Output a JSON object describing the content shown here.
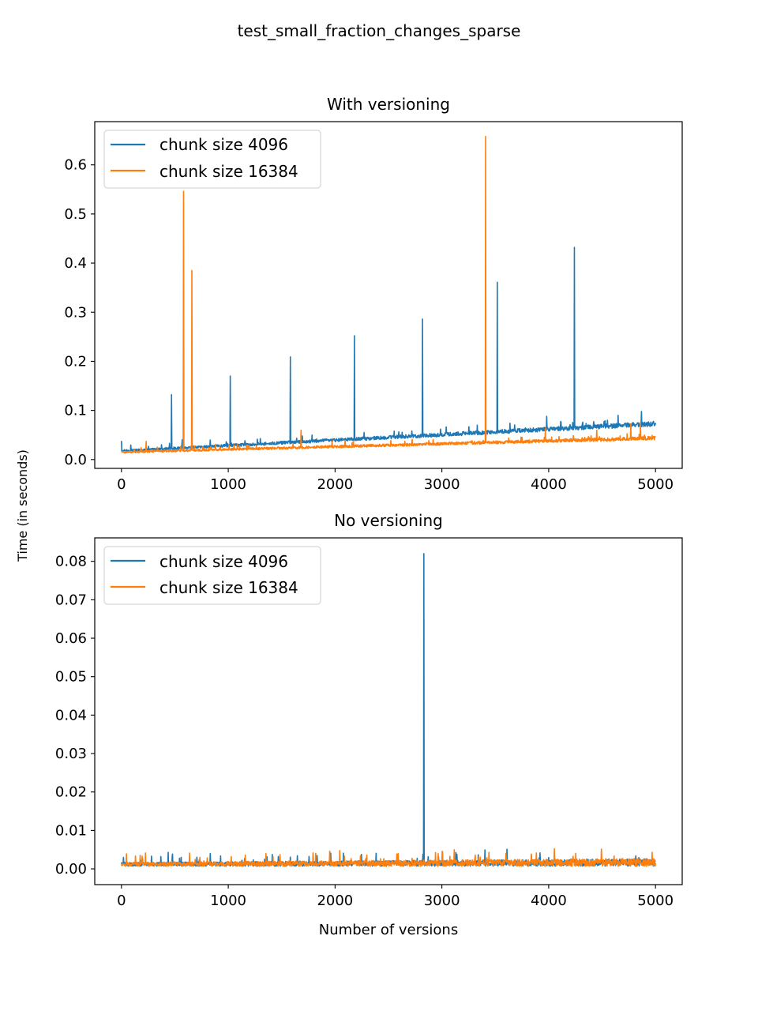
{
  "figure": {
    "suptitle": "test_small_fraction_changes_sparse",
    "shared_ylabel": "Time (in seconds)"
  },
  "chart_data": [
    {
      "type": "line",
      "title": "With versioning",
      "xlabel": "",
      "ylabel": "Time (in seconds)",
      "xlim": [
        -250,
        5250
      ],
      "ylim": [
        -0.018,
        0.688
      ],
      "xticks": [
        0,
        1000,
        2000,
        3000,
        4000,
        5000
      ],
      "xtick_labels": [
        "0",
        "1000",
        "2000",
        "3000",
        "4000",
        "5000"
      ],
      "yticks": [
        0.0,
        0.1,
        0.2,
        0.3,
        0.4,
        0.5,
        0.6
      ],
      "ytick_labels": [
        "0.0",
        "0.1",
        "0.2",
        "0.3",
        "0.4",
        "0.5",
        "0.6"
      ],
      "legend_location": "top-left",
      "x_range": [
        0,
        5000
      ],
      "series": [
        {
          "name": "chunk size 4096",
          "color": "#1f77b4",
          "baseline": {
            "start": 0.015,
            "end": 0.068,
            "noise": 0.008
          },
          "spikes": [
            [
              0,
              0.038
            ],
            [
              470,
              0.132
            ],
            [
              1020,
              0.17
            ],
            [
              1580,
              0.209
            ],
            [
              2180,
              0.252
            ],
            [
              2820,
              0.286
            ],
            [
              3520,
              0.361
            ],
            [
              4240,
              0.432
            ],
            [
              4870,
              0.098
            ],
            [
              4650,
              0.09
            ],
            [
              3980,
              0.088
            ],
            [
              3330,
              0.07
            ]
          ]
        },
        {
          "name": "chunk size 16384",
          "color": "#ff7f0e",
          "baseline": {
            "start": 0.013,
            "end": 0.04,
            "noise": 0.006
          },
          "spikes": [
            [
              580,
              0.546
            ],
            [
              660,
              0.385
            ],
            [
              3410,
              0.658
            ],
            [
              230,
              0.037
            ],
            [
              1680,
              0.06
            ],
            [
              3970,
              0.063
            ],
            [
              4450,
              0.06
            ],
            [
              4770,
              0.073
            ],
            [
              4860,
              0.075
            ]
          ]
        }
      ]
    },
    {
      "type": "line",
      "title": "No versioning",
      "xlabel": "Number of versions",
      "ylabel": "Time (in seconds)",
      "xlim": [
        -250,
        5250
      ],
      "ylim": [
        -0.0041,
        0.0861
      ],
      "xticks": [
        0,
        1000,
        2000,
        3000,
        4000,
        5000
      ],
      "xtick_labels": [
        "0",
        "1000",
        "2000",
        "3000",
        "4000",
        "5000"
      ],
      "yticks": [
        0.0,
        0.01,
        0.02,
        0.03,
        0.04,
        0.05,
        0.06,
        0.07,
        0.08
      ],
      "ytick_labels": [
        "0.00",
        "0.01",
        "0.02",
        "0.03",
        "0.04",
        "0.05",
        "0.06",
        "0.07",
        "0.08"
      ],
      "legend_location": "top-left",
      "x_range": [
        0,
        5000
      ],
      "series": [
        {
          "name": "chunk size 4096",
          "color": "#1f77b4",
          "baseline": {
            "start": 0.0007,
            "end": 0.0007,
            "noise": 0.0016
          },
          "spikes": [
            [
              2830,
              0.082
            ],
            [
              1470,
              0.0032
            ],
            [
              4600,
              0.0024
            ]
          ]
        },
        {
          "name": "chunk size 16384",
          "color": "#ff7f0e",
          "baseline": {
            "start": 0.0007,
            "end": 0.0007,
            "noise": 0.0017
          },
          "spikes": [
            [
              3310,
              0.0028
            ],
            [
              4980,
              0.0021
            ]
          ]
        }
      ]
    }
  ]
}
